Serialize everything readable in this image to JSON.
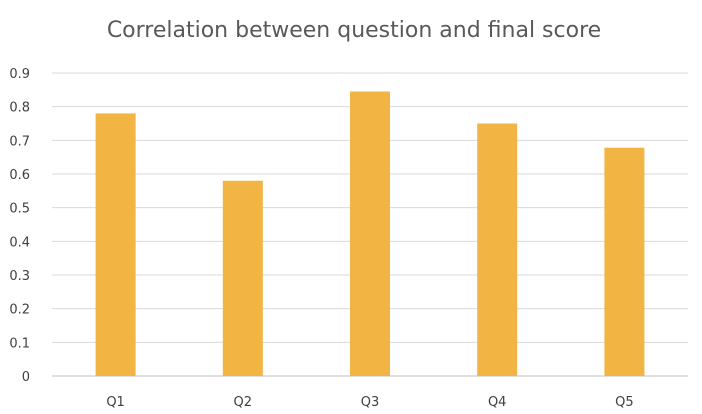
{
  "chart_data": {
    "type": "bar",
    "title": "Correlation between question and final score",
    "categories": [
      "Q1",
      "Q2",
      "Q3",
      "Q4",
      "Q5"
    ],
    "values": [
      0.78,
      0.58,
      0.845,
      0.75,
      0.678
    ],
    "ylim": [
      0,
      0.9
    ],
    "yticks": [
      "0",
      "0.1",
      "0.2",
      "0.3",
      "0.4",
      "0.5",
      "0.6",
      "0.7",
      "0.8",
      "0.9"
    ],
    "grid": true,
    "legend": "none",
    "bar_color": "#F2B443",
    "grid_color": "#D9D9D9",
    "title_color": "#595959"
  }
}
